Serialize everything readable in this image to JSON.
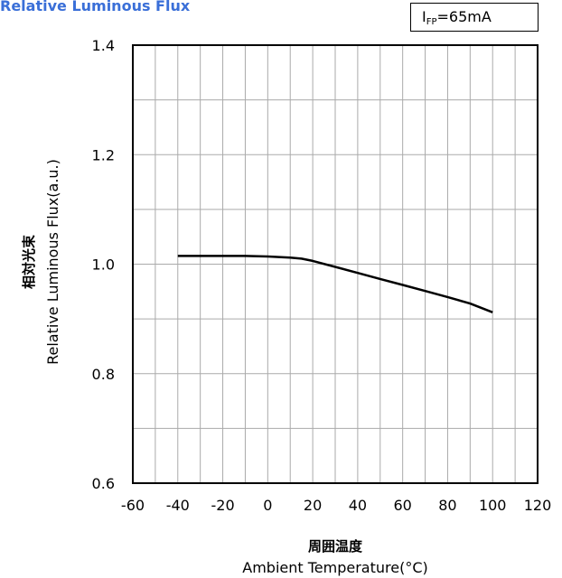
{
  "chart_data": {
    "type": "line",
    "title": "Relative Luminous Flux",
    "condition": {
      "symbol": "I",
      "subscript": "FP",
      "value": "=65mA"
    },
    "xlabel_cn": "周囲温度",
    "xlabel": "Ambient Temperature(°C)",
    "ylabel_cn": "相対光束",
    "ylabel": "Relative Luminous Flux(a.u.)",
    "xlim": [
      -60,
      120
    ],
    "ylim": [
      0.6,
      1.4
    ],
    "x_ticks": [
      -60,
      -40,
      -20,
      0,
      20,
      40,
      60,
      80,
      100,
      120
    ],
    "x_tick_labels": [
      "-60",
      "-40",
      "-20",
      "0",
      "20",
      "40",
      "60",
      "80",
      "100",
      "120"
    ],
    "y_ticks": [
      0.6,
      0.8,
      1.0,
      1.2,
      1.4
    ],
    "y_tick_labels": [
      "0.6",
      "0.8",
      "1.0",
      "1.2",
      "1.4"
    ],
    "x_minor_step": 10,
    "y_minor_step": 0.1,
    "grid": true,
    "series": [
      {
        "color": "#000000",
        "x": [
          -40,
          -30,
          -20,
          -10,
          0,
          10,
          15,
          20,
          30,
          40,
          50,
          60,
          70,
          80,
          90,
          100
        ],
        "y": [
          1.015,
          1.015,
          1.015,
          1.015,
          1.014,
          1.012,
          1.01,
          1.006,
          0.995,
          0.984,
          0.973,
          0.962,
          0.951,
          0.94,
          0.928,
          0.912
        ]
      }
    ]
  }
}
